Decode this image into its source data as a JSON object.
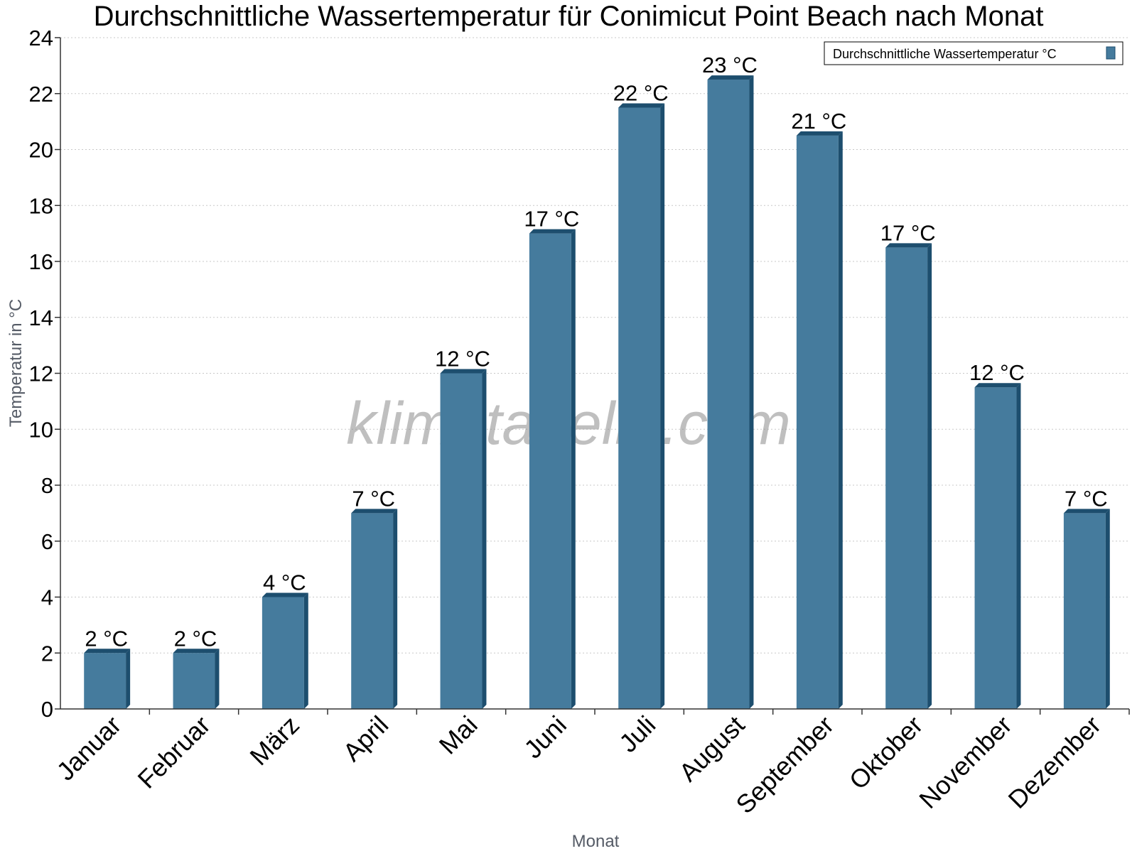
{
  "chart_data": {
    "type": "bar",
    "title": "Durchschnittliche Wassertemperatur für Conimicut Point Beach nach Monat",
    "xlabel": "Monat",
    "ylabel": "Temperatur in °C",
    "ylim": [
      0,
      24
    ],
    "yticks": [
      "0",
      "2",
      "4",
      "6",
      "8",
      "10",
      "12",
      "14",
      "16",
      "18",
      "20",
      "22",
      "24"
    ],
    "categories": [
      "Januar",
      "Februar",
      "März",
      "April",
      "Mai",
      "Juni",
      "Juli",
      "August",
      "September",
      "Oktober",
      "November",
      "Dezember"
    ],
    "series": [
      {
        "name": "Durchschnittliche Wassertemperatur °C",
        "values": [
          2,
          2,
          4,
          7,
          12,
          17,
          21.5,
          22.5,
          20.5,
          16.5,
          11.5,
          7
        ],
        "labels": [
          "2 °C",
          "2 °C",
          "4 °C",
          "7 °C",
          "12 °C",
          "17 °C",
          "22 °C",
          "23 °C",
          "21 °C",
          "17 °C",
          "12 °C",
          "7 °C"
        ]
      }
    ],
    "grid": true,
    "legend_position": "top-right",
    "colors": {
      "bar": "#457b9d",
      "bar_edge": "#1d4e6e",
      "gridline": "#c8c8c8"
    }
  },
  "watermark": "klimatabelle.com"
}
